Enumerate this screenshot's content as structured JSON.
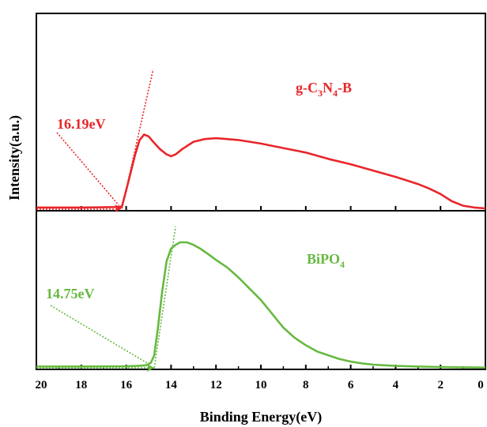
{
  "chart_data": {
    "type": "line",
    "xlabel": "Binding Energy(eV)",
    "ylabel": "Intensity(a.u.)",
    "xlim": [
      20,
      0
    ],
    "x_reversed": true,
    "x_ticks": [
      20,
      18,
      16,
      14,
      12,
      10,
      8,
      6,
      4,
      2,
      0
    ],
    "x_tick_labels": [
      "20",
      "18",
      "16",
      "14",
      "12",
      "10",
      "8",
      "6",
      "4",
      "2",
      "0"
    ],
    "y_ticks_shown": false,
    "grid": false,
    "panels": [
      {
        "series": [
          {
            "name": "g-C3N4-B",
            "label_main": "g-C",
            "label_sub1": "3",
            "label_mid": "N",
            "label_sub2": "4",
            "label_end": "-B",
            "color": "#e8262a",
            "x": [
              20,
              18,
              17,
              16.5,
              16.19,
              16.0,
              15.8,
              15.6,
              15.4,
              15.2,
              15.0,
              14.8,
              14.5,
              14.2,
              14.0,
              13.8,
              13.5,
              13.0,
              12.5,
              12.0,
              11.5,
              11.0,
              10.0,
              9.0,
              8.0,
              7.0,
              6.0,
              5.0,
              4.0,
              3.0,
              2.5,
              2.0,
              1.5,
              1.0,
              0.5,
              0
            ],
            "y": [
              0.01,
              0.01,
              0.012,
              0.015,
              0.02,
              0.2,
              0.4,
              0.6,
              0.76,
              0.82,
              0.8,
              0.74,
              0.66,
              0.6,
              0.58,
              0.6,
              0.66,
              0.74,
              0.77,
              0.78,
              0.77,
              0.76,
              0.72,
              0.67,
              0.62,
              0.55,
              0.49,
              0.42,
              0.35,
              0.27,
              0.22,
              0.16,
              0.08,
              0.03,
              0.01,
              0.0
            ]
          }
        ],
        "onset_value": 16.19,
        "onset_label": "16.19eV"
      },
      {
        "series": [
          {
            "name": "BiPO4",
            "label_main": "BiPO",
            "label_sub1": "4",
            "color": "#66b940",
            "x": [
              20,
              18,
              16,
              15.5,
              15.1,
              14.9,
              14.75,
              14.6,
              14.4,
              14.2,
              14.0,
              13.8,
              13.6,
              13.3,
              13.0,
              12.7,
              12.3,
              12.0,
              11.5,
              11.0,
              10.5,
              10.0,
              9.5,
              9.0,
              8.5,
              8.0,
              7.5,
              7.0,
              6.5,
              6.0,
              5.5,
              5.0,
              4.0,
              3.0,
              2.0,
              1.0,
              0
            ],
            "y": [
              0.01,
              0.01,
              0.012,
              0.015,
              0.02,
              0.04,
              0.1,
              0.3,
              0.6,
              0.85,
              0.95,
              0.98,
              1.0,
              1.0,
              0.98,
              0.95,
              0.9,
              0.86,
              0.8,
              0.72,
              0.63,
              0.54,
              0.43,
              0.32,
              0.24,
              0.18,
              0.13,
              0.1,
              0.07,
              0.05,
              0.035,
              0.025,
              0.015,
              0.01,
              0.006,
              0.004,
              0.002
            ]
          }
        ],
        "onset_value": 14.75,
        "onset_label": "14.75eV"
      }
    ]
  }
}
